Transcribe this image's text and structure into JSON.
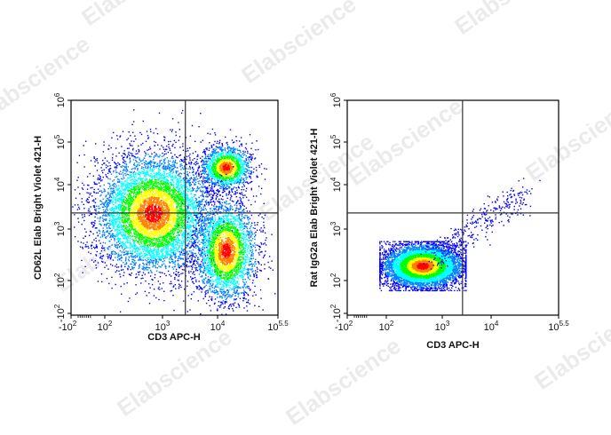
{
  "watermark": "Elabscience",
  "colors": {
    "frame": "#000000",
    "gate": "#333333",
    "density_low": "#0000ff",
    "density_mid": "#00ffff",
    "density_high1": "#00ff00",
    "density_high2": "#ffff00",
    "density_max": "#ff0000"
  },
  "chart_data": [
    {
      "type": "scatter",
      "title": "",
      "xlabel": "CD3 APC-H",
      "ylabel": "CD62L Elab Bright Violet 421-H",
      "x_scale": "biexponential",
      "y_scale": "biexponential",
      "xlim": [
        "-10^2",
        "10^5.5"
      ],
      "ylim": [
        "-10^2",
        "10^6"
      ],
      "x_ticks": [
        {
          "base": "-10",
          "exp": "2"
        },
        {
          "base": "10",
          "exp": "2"
        },
        {
          "base": "10",
          "exp": "3"
        },
        {
          "base": "10",
          "exp": "4"
        },
        {
          "base": "10",
          "exp": "5.5"
        }
      ],
      "y_ticks": [
        {
          "base": "10",
          "exp": "6"
        },
        {
          "base": "10",
          "exp": "5"
        },
        {
          "base": "10",
          "exp": "4"
        },
        {
          "base": "10",
          "exp": "3"
        },
        {
          "base": "10",
          "exp": "2"
        },
        {
          "base": "-10",
          "exp": "2"
        }
      ],
      "quadrant_gate": {
        "x": 2600,
        "y": 2000
      },
      "populations": [
        {
          "x_center": 400,
          "y_center": 2000,
          "density": "high",
          "count": 6500
        },
        {
          "x_center": 16000,
          "y_center": 25000,
          "density": "high",
          "count": 1600
        },
        {
          "x_center": 16000,
          "y_center": 250,
          "density": "medium",
          "count": 3000
        }
      ],
      "grid": false,
      "legend": "none"
    },
    {
      "type": "scatter",
      "title": "",
      "xlabel": "CD3 APC-H",
      "ylabel": "Rat IgG2a Elab Bright Violet 421-H",
      "x_scale": "biexponential",
      "y_scale": "biexponential",
      "xlim": [
        "-10^2",
        "10^5.5"
      ],
      "ylim": [
        "-10^2",
        "10^6"
      ],
      "x_ticks": [
        {
          "base": "-10",
          "exp": "2"
        },
        {
          "base": "10",
          "exp": "2"
        },
        {
          "base": "10",
          "exp": "3"
        },
        {
          "base": "10",
          "exp": "4"
        },
        {
          "base": "10",
          "exp": "5.5"
        }
      ],
      "y_ticks": [
        {
          "base": "10",
          "exp": "6"
        },
        {
          "base": "10",
          "exp": "5"
        },
        {
          "base": "10",
          "exp": "4"
        },
        {
          "base": "10",
          "exp": "3"
        },
        {
          "base": "10",
          "exp": "2"
        },
        {
          "base": "-10",
          "exp": "2"
        }
      ],
      "quadrant_gate": {
        "x": 2600,
        "y": 2000
      },
      "populations": [
        {
          "x_center": 140,
          "y_center": 110,
          "density": "high",
          "count": 6500
        },
        {
          "x_center": 2600,
          "y_center": 700,
          "density": "sparse-diagonal",
          "count": 350
        }
      ],
      "grid": false,
      "legend": "none"
    }
  ]
}
